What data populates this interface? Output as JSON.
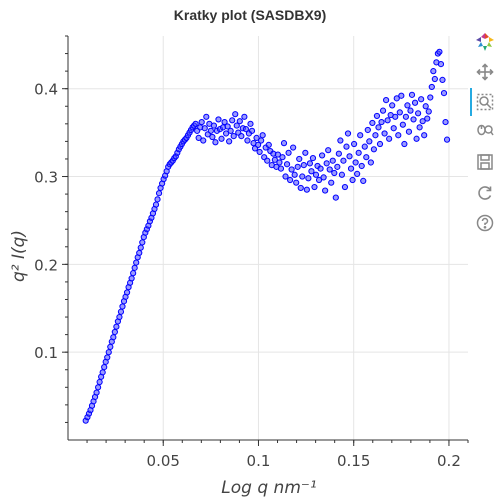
{
  "toolbar": {
    "tools": [
      {
        "name": "bokeh-logo-icon"
      },
      {
        "name": "pan-icon"
      },
      {
        "name": "box-zoom-icon"
      },
      {
        "name": "wheel-zoom-icon"
      },
      {
        "name": "save-icon"
      },
      {
        "name": "reset-icon"
      },
      {
        "name": "help-icon"
      }
    ],
    "active_tool": "pan-icon",
    "accent_color": "#26aae1"
  },
  "chart_data": {
    "type": "scatter",
    "title": "Kratky plot (SASDBX9)",
    "xlabel": "Log q nm⁻¹",
    "ylabel": "q² I(q)",
    "xlim": [
      0.0,
      0.21
    ],
    "ylim": [
      0.0,
      0.46
    ],
    "xticks": [
      0.05,
      0.1,
      0.15,
      0.2
    ],
    "xtick_labels": [
      "0.05",
      "0.1",
      "0.15",
      "0.2"
    ],
    "yticks": [
      0.1,
      0.2,
      0.3,
      0.4
    ],
    "ytick_labels": [
      "0.1",
      "0.2",
      "0.3",
      "0.4"
    ],
    "grid": true,
    "marker_color": "#4747ff",
    "marker_edge_color": "#0000ff",
    "x": [
      0.0093,
      0.0102,
      0.011,
      0.0118,
      0.0126,
      0.0134,
      0.0142,
      0.015,
      0.0158,
      0.0166,
      0.0174,
      0.0182,
      0.019,
      0.0198,
      0.0206,
      0.0214,
      0.0222,
      0.023,
      0.0238,
      0.0246,
      0.0254,
      0.0262,
      0.027,
      0.0278,
      0.0286,
      0.0294,
      0.0302,
      0.031,
      0.0318,
      0.0326,
      0.0334,
      0.0342,
      0.035,
      0.0358,
      0.0366,
      0.0374,
      0.0382,
      0.039,
      0.0398,
      0.0406,
      0.0414,
      0.0422,
      0.043,
      0.0438,
      0.0446,
      0.0454,
      0.0462,
      0.047,
      0.0478,
      0.0486,
      0.0494,
      0.0502,
      0.051,
      0.0518,
      0.0526,
      0.0534,
      0.0542,
      0.055,
      0.0558,
      0.0566,
      0.0574,
      0.0582,
      0.059,
      0.0598,
      0.0606,
      0.0614,
      0.0622,
      0.063,
      0.0638,
      0.0646,
      0.0654,
      0.0662,
      0.067,
      0.0678,
      0.0686,
      0.0694,
      0.0702,
      0.071,
      0.0718,
      0.0726,
      0.0734,
      0.0742,
      0.075,
      0.0758,
      0.0766,
      0.0774,
      0.0782,
      0.079,
      0.0798,
      0.0806,
      0.0814,
      0.0822,
      0.083,
      0.0838,
      0.0846,
      0.0854,
      0.0862,
      0.087,
      0.0878,
      0.0886,
      0.0894,
      0.0902,
      0.091,
      0.0918,
      0.0926,
      0.0934,
      0.0942,
      0.095,
      0.0958,
      0.0966,
      0.0974,
      0.0982,
      0.099,
      0.0998,
      0.1006,
      0.1014,
      0.1022,
      0.103,
      0.1038,
      0.1046,
      0.1054,
      0.1062,
      0.107,
      0.1078,
      0.1086,
      0.1094,
      0.1102,
      0.111,
      0.1118,
      0.1126,
      0.1134,
      0.1142,
      0.115,
      0.1158,
      0.1166,
      0.1174,
      0.1182,
      0.119,
      0.1198,
      0.1206,
      0.1214,
      0.1222,
      0.123,
      0.1238,
      0.1246,
      0.1254,
      0.1262,
      0.127,
      0.1278,
      0.1286,
      0.1294,
      0.1302,
      0.131,
      0.1318,
      0.1326,
      0.1334,
      0.1342,
      0.135,
      0.1358,
      0.1366,
      0.1374,
      0.1382,
      0.139,
      0.1398,
      0.1406,
      0.1414,
      0.1422,
      0.143,
      0.1438,
      0.1446,
      0.1454,
      0.1462,
      0.147,
      0.1478,
      0.1486,
      0.1494,
      0.1502,
      0.151,
      0.1518,
      0.1526,
      0.1534,
      0.1542,
      0.155,
      0.1558,
      0.1566,
      0.1574,
      0.1582,
      0.159,
      0.1598,
      0.1606,
      0.1614,
      0.1622,
      0.163,
      0.1638,
      0.1646,
      0.1654,
      0.1662,
      0.167,
      0.1678,
      0.1686,
      0.1694,
      0.1702,
      0.171,
      0.1718,
      0.1726,
      0.1734,
      0.1742,
      0.175,
      0.1758,
      0.1766,
      0.1774,
      0.1782,
      0.179,
      0.1798,
      0.1806,
      0.1814,
      0.1822,
      0.183,
      0.1838,
      0.1846,
      0.1854,
      0.1862,
      0.187,
      0.1878,
      0.1886,
      0.1894,
      0.1902,
      0.191,
      0.1918,
      0.1926,
      0.1934,
      0.1942,
      0.195,
      0.1958,
      0.1966,
      0.1974,
      0.1982,
      0.199
    ],
    "y": [
      0.022,
      0.026,
      0.03,
      0.034,
      0.039,
      0.044,
      0.049,
      0.054,
      0.06,
      0.066,
      0.072,
      0.077,
      0.083,
      0.089,
      0.094,
      0.1,
      0.106,
      0.112,
      0.117,
      0.123,
      0.129,
      0.135,
      0.14,
      0.146,
      0.152,
      0.158,
      0.163,
      0.168,
      0.174,
      0.179,
      0.184,
      0.19,
      0.196,
      0.202,
      0.208,
      0.213,
      0.219,
      0.225,
      0.231,
      0.236,
      0.24,
      0.244,
      0.249,
      0.253,
      0.258,
      0.263,
      0.268,
      0.274,
      0.281,
      0.287,
      0.292,
      0.297,
      0.301,
      0.306,
      0.311,
      0.314,
      0.316,
      0.318,
      0.321,
      0.323,
      0.327,
      0.331,
      0.334,
      0.337,
      0.34,
      0.342,
      0.344,
      0.347,
      0.35,
      0.353,
      0.356,
      0.358,
      0.36,
      0.352,
      0.344,
      0.356,
      0.362,
      0.341,
      0.355,
      0.368,
      0.348,
      0.36,
      0.352,
      0.345,
      0.358,
      0.339,
      0.352,
      0.365,
      0.354,
      0.343,
      0.356,
      0.362,
      0.349,
      0.357,
      0.34,
      0.352,
      0.364,
      0.346,
      0.371,
      0.358,
      0.35,
      0.363,
      0.346,
      0.355,
      0.368,
      0.354,
      0.341,
      0.349,
      0.36,
      0.352,
      0.338,
      0.332,
      0.344,
      0.336,
      0.328,
      0.341,
      0.347,
      0.322,
      0.333,
      0.318,
      0.336,
      0.329,
      0.313,
      0.326,
      0.319,
      0.311,
      0.325,
      0.316,
      0.309,
      0.322,
      0.338,
      0.3,
      0.314,
      0.327,
      0.296,
      0.308,
      0.333,
      0.302,
      0.293,
      0.311,
      0.32,
      0.287,
      0.3,
      0.313,
      0.327,
      0.285,
      0.298,
      0.315,
      0.306,
      0.321,
      0.288,
      0.302,
      0.312,
      0.296,
      0.309,
      0.324,
      0.299,
      0.284,
      0.315,
      0.33,
      0.308,
      0.293,
      0.318,
      0.304,
      0.276,
      0.311,
      0.326,
      0.341,
      0.302,
      0.318,
      0.288,
      0.334,
      0.349,
      0.323,
      0.309,
      0.296,
      0.337,
      0.316,
      0.303,
      0.327,
      0.347,
      0.312,
      0.295,
      0.334,
      0.322,
      0.353,
      0.34,
      0.316,
      0.361,
      0.331,
      0.347,
      0.369,
      0.356,
      0.337,
      0.362,
      0.375,
      0.349,
      0.387,
      0.364,
      0.343,
      0.37,
      0.381,
      0.355,
      0.368,
      0.389,
      0.347,
      0.373,
      0.392,
      0.359,
      0.337,
      0.368,
      0.381,
      0.351,
      0.375,
      0.393,
      0.365,
      0.384,
      0.343,
      0.372,
      0.356,
      0.388,
      0.363,
      0.347,
      0.38,
      0.366,
      0.374,
      0.39,
      0.402,
      0.42,
      0.411,
      0.43,
      0.44,
      0.442,
      0.428,
      0.41,
      0.395,
      0.362,
      0.342
    ]
  }
}
